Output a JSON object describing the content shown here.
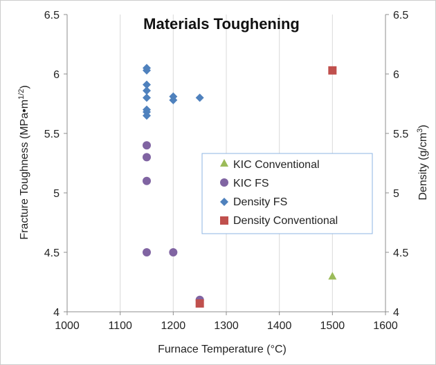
{
  "chart_data": {
    "type": "scatter",
    "title": "Materials Toughening",
    "xlabel": "Furnace Temperature (°C)",
    "ylabel_left": {
      "main": "Fracture Toughness (MPa•m",
      "sup": "1/2",
      "end": ")"
    },
    "ylabel_right": {
      "main": "Density (g/cm",
      "sup": "3",
      "end": ")"
    },
    "xlim": [
      1000,
      1600
    ],
    "ylim_left": [
      4,
      6.5
    ],
    "ylim_right": [
      4,
      6.5
    ],
    "x_ticks": [
      "1000",
      "1100",
      "1200",
      "1300",
      "1400",
      "1500",
      "1600"
    ],
    "y_ticks_left": [
      "4",
      "4.5",
      "5",
      "5.5",
      "6",
      "6.5"
    ],
    "y_ticks_right": [
      "4",
      "4.5",
      "5",
      "5.5",
      "6",
      "6.5"
    ],
    "x_tick_values": [
      1000,
      1100,
      1200,
      1300,
      1400,
      1500,
      1600
    ],
    "y_tick_values": [
      4,
      4.5,
      5,
      5.5,
      6,
      6.5
    ],
    "grid": "vertical",
    "legend_position": "center-right",
    "series": [
      {
        "name": "KIC Conventional",
        "marker": "triangle",
        "color": "#9BBB59",
        "axis": "left",
        "points": [
          [
            1500,
            4.3
          ]
        ]
      },
      {
        "name": "KIC FS",
        "marker": "circle",
        "color": "#8064A2",
        "axis": "left",
        "points": [
          [
            1150,
            5.4
          ],
          [
            1150,
            5.3
          ],
          [
            1150,
            5.1
          ],
          [
            1150,
            4.5
          ],
          [
            1200,
            4.5
          ],
          [
            1250,
            4.1
          ]
        ]
      },
      {
        "name": "Density FS",
        "marker": "diamond",
        "color": "#4F81BD",
        "axis": "right",
        "points": [
          [
            1150,
            6.05
          ],
          [
            1150,
            6.03
          ],
          [
            1150,
            5.91
          ],
          [
            1150,
            5.86
          ],
          [
            1150,
            5.8
          ],
          [
            1150,
            5.7
          ],
          [
            1150,
            5.68
          ],
          [
            1150,
            5.65
          ],
          [
            1200,
            5.81
          ],
          [
            1200,
            5.78
          ],
          [
            1250,
            5.8
          ]
        ]
      },
      {
        "name": "Density Conventional",
        "marker": "square",
        "color": "#C0504D",
        "axis": "right",
        "points": [
          [
            1500,
            6.03
          ],
          [
            1250,
            4.07
          ]
        ]
      }
    ]
  }
}
